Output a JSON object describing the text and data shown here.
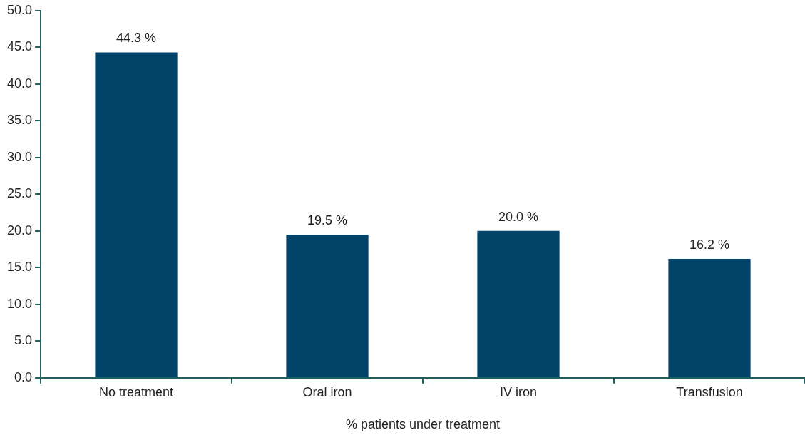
{
  "chart_data": {
    "type": "bar",
    "xlabel": "% patients under treatment",
    "categories": [
      "No treatment",
      "Oral iron",
      "IV iron",
      "Transfusion"
    ],
    "values": [
      44.3,
      19.5,
      20.0,
      16.2
    ],
    "color": "#02436a",
    "value_labels": [
      "44.3 %",
      "19.5 %",
      "20.0 %",
      "16.2 %"
    ],
    "ylim": [
      0,
      50
    ],
    "yticks": [
      {
        "value": 0,
        "label": "0.0"
      },
      {
        "value": 5,
        "label": "5.0"
      },
      {
        "value": 10,
        "label": "10.0"
      },
      {
        "value": 15,
        "label": "15.0"
      },
      {
        "value": 20,
        "label": "20.0"
      },
      {
        "value": 25,
        "label": "25.0"
      },
      {
        "value": 30,
        "label": "30.0"
      },
      {
        "value": 35,
        "label": "35.0"
      },
      {
        "value": 40,
        "label": "40.0"
      },
      {
        "value": 45,
        "label": "45.0"
      },
      {
        "value": 50,
        "label": "50.0"
      }
    ],
    "grid": false,
    "legend": false
  }
}
